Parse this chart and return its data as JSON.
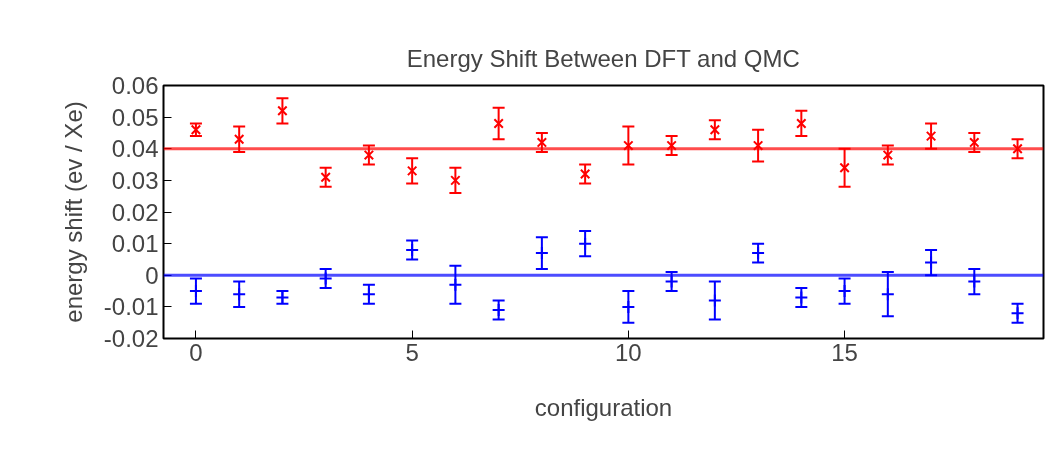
{
  "chart_data": {
    "type": "scatter",
    "title": "Energy Shift Between DFT and QMC",
    "xlabel": "configuration",
    "ylabel": "energy shift (ev / Xe)",
    "x": [
      0,
      1,
      2,
      3,
      4,
      5,
      6,
      7,
      8,
      9,
      10,
      11,
      12,
      13,
      14,
      15,
      16,
      17,
      18,
      19
    ],
    "series": [
      {
        "color": "#ff0000",
        "marker": "x",
        "values": [
          0.046,
          0.043,
          0.052,
          0.031,
          0.038,
          0.033,
          0.03,
          0.048,
          0.042,
          0.032,
          0.041,
          0.041,
          0.046,
          0.041,
          0.048,
          0.034,
          0.038,
          0.044,
          0.042,
          0.04
        ],
        "errors": [
          0.002,
          0.004,
          0.004,
          0.003,
          0.003,
          0.004,
          0.004,
          0.005,
          0.003,
          0.003,
          0.006,
          0.003,
          0.003,
          0.005,
          0.004,
          0.006,
          0.003,
          0.004,
          0.003,
          0.003
        ]
      },
      {
        "color": "#0000ff",
        "marker": "cross",
        "values": [
          -0.005,
          -0.006,
          -0.007,
          -0.001,
          -0.006,
          0.008,
          -0.003,
          -0.011,
          0.007,
          0.01,
          -0.01,
          -0.002,
          -0.008,
          0.007,
          -0.007,
          -0.005,
          -0.006,
          0.004,
          -0.002,
          -0.012
        ],
        "errors": [
          0.004,
          0.004,
          0.002,
          0.003,
          0.003,
          0.003,
          0.006,
          0.003,
          0.005,
          0.004,
          0.005,
          0.003,
          0.006,
          0.003,
          0.003,
          0.004,
          0.007,
          0.004,
          0.004,
          0.003
        ]
      }
    ],
    "ref_lines": [
      {
        "axis": "y",
        "value": 0.04,
        "color": "#ff0000"
      },
      {
        "axis": "y",
        "value": 0,
        "color": "#0000ff"
      }
    ],
    "xlim": [
      -0.75,
      19.6
    ],
    "xticks": [
      0,
      5,
      10,
      15
    ],
    "ylim": [
      -0.02,
      0.06
    ],
    "yticks": [
      {
        "value": -0.02,
        "label": "-0.02"
      },
      {
        "value": -0.01,
        "label": "-0.01"
      },
      0,
      0.01,
      0.02,
      0.03,
      0.04,
      0.05,
      0.06
    ],
    "grid": false
  }
}
